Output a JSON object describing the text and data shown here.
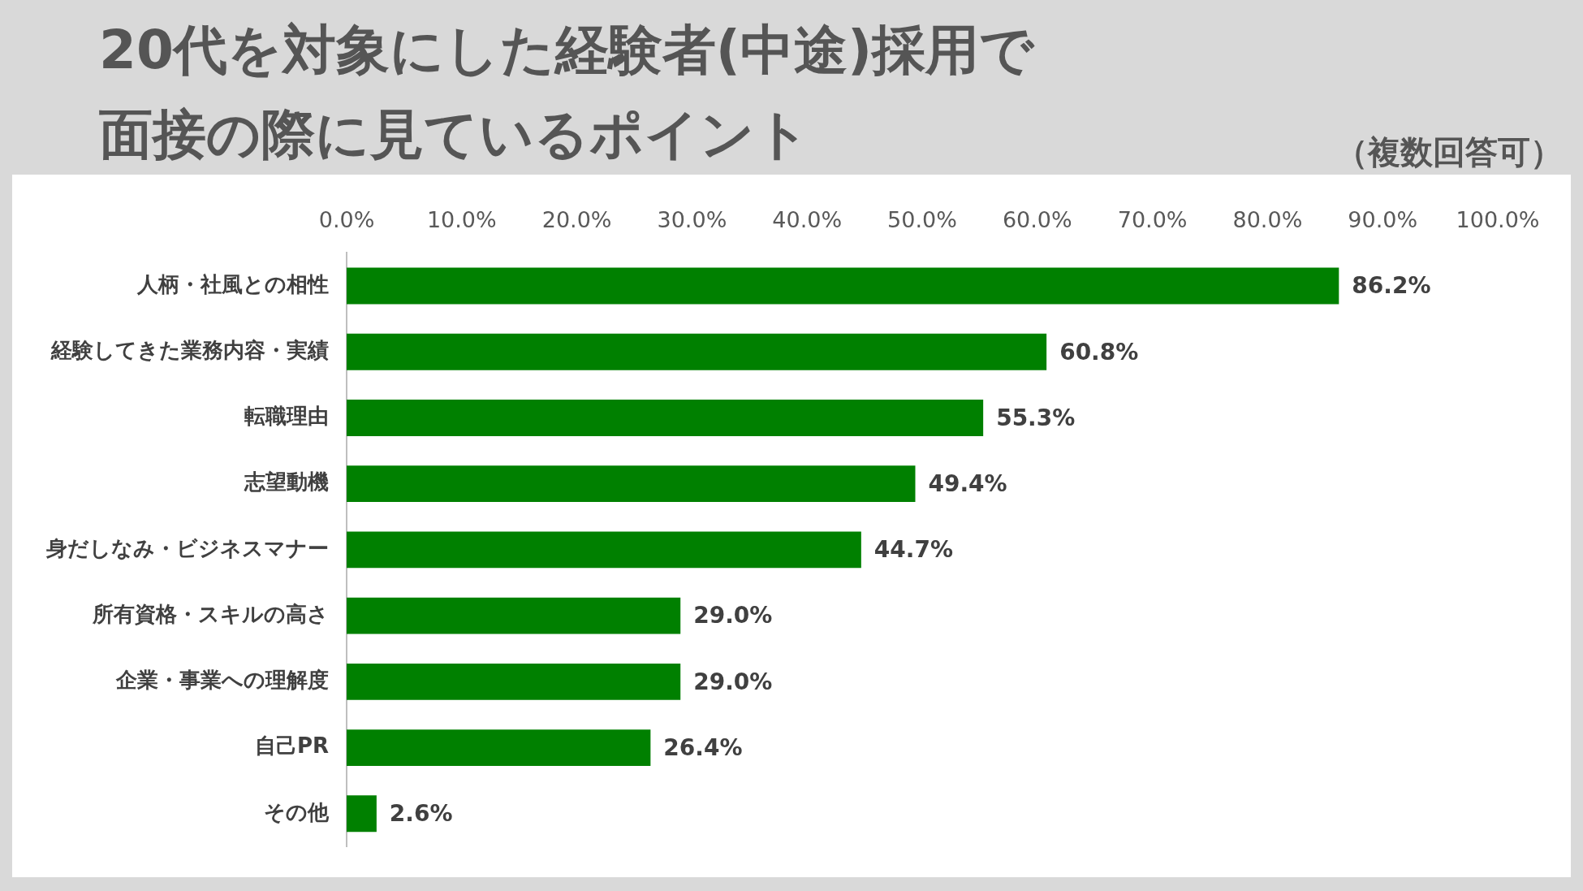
{
  "chart_data": {
    "type": "bar",
    "orientation": "horizontal",
    "title": "20代を対象にした経験者(中途)採用で面接の際に見ているポイント",
    "subtitle": "（複数回答可）",
    "categories": [
      "人柄・社風との相性",
      "経験してきた業務内容・実績",
      "転職理由",
      "志望動機",
      "身だしなみ・ビジネスマナー",
      "所有資格・スキルの高さ",
      "企業・事業への理解度",
      "自己PR",
      "その他"
    ],
    "values": [
      86.2,
      60.8,
      55.3,
      49.4,
      44.7,
      29.0,
      29.0,
      26.4,
      2.6
    ],
    "value_labels": [
      "86.2%",
      "60.8%",
      "55.3%",
      "49.4%",
      "44.7%",
      "29.0%",
      "29.0%",
      "26.4%",
      "2.6%"
    ],
    "color": "#008000",
    "xlim": [
      0,
      100
    ],
    "xticks": [
      {
        "value": 0,
        "label": "0.0%"
      },
      {
        "value": 10,
        "label": "10.0%"
      },
      {
        "value": 20,
        "label": "20.0%"
      },
      {
        "value": 30,
        "label": "30.0%"
      },
      {
        "value": 40,
        "label": "40.0%"
      },
      {
        "value": 50,
        "label": "50.0%"
      },
      {
        "value": 60,
        "label": "60.0%"
      },
      {
        "value": 70,
        "label": "70.0%"
      },
      {
        "value": 80,
        "label": "80.0%"
      },
      {
        "value": 90,
        "label": "90.0%"
      },
      {
        "value": 100,
        "label": "100.0%"
      }
    ],
    "grid": false,
    "legend": false
  }
}
